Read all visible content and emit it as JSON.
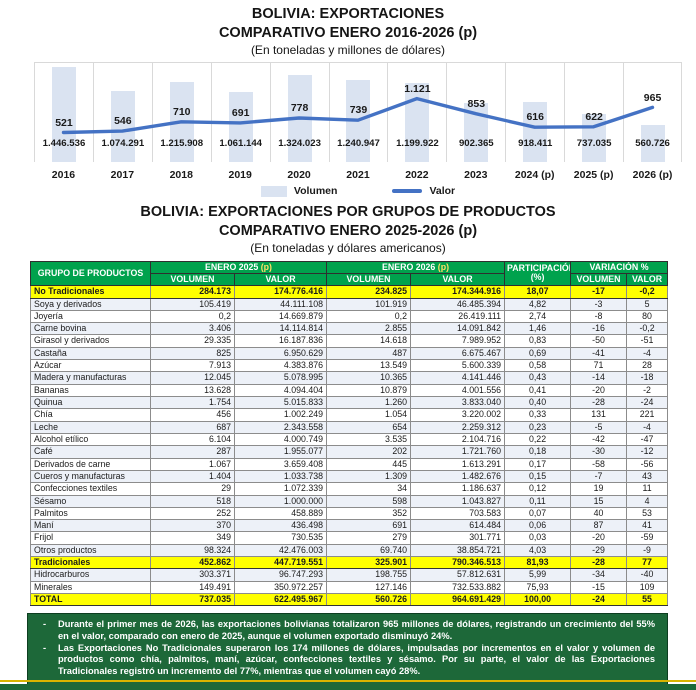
{
  "chart_section": {
    "title_line1": "BOLIVIA: EXPORTACIONES",
    "title_line2": "COMPARATIVO ENERO 2016-2026 (p)",
    "subtitle": "(En toneladas y millones de dólares)",
    "legend": {
      "volumen": "Volumen",
      "valor": "Valor"
    }
  },
  "chart_data": {
    "type": "bar+line",
    "categories": [
      "2016",
      "2017",
      "2018",
      "2019",
      "2020",
      "2021",
      "2022",
      "2023",
      "2024 (p)",
      "2025 (p)",
      "2026 (p)"
    ],
    "series": [
      {
        "name": "Volumen",
        "type": "bar",
        "values": [
          1446536,
          1074291,
          1215908,
          1061144,
          1324023,
          1240947,
          1199922,
          902365,
          918411,
          737035,
          560726
        ],
        "labels": [
          "1.446.536",
          "1.074.291",
          "1.215.908",
          "1.061.144",
          "1.324.023",
          "1.240.947",
          "1.199.922",
          "902.365",
          "918.411",
          "737.035",
          "560.726"
        ]
      },
      {
        "name": "Valor",
        "type": "line",
        "values": [
          521,
          546,
          710,
          691,
          778,
          739,
          1121,
          853,
          616,
          622,
          965
        ],
        "labels": [
          "521",
          "546",
          "710",
          "691",
          "778",
          "739",
          "1.121",
          "853",
          "616",
          "622",
          "965"
        ]
      }
    ],
    "volumen_axis_max": 1500000,
    "valor_axis_max": 1750,
    "bar_color": "#dae3f1",
    "line_color": "#4472c4",
    "grid_color": "#d9d9d9",
    "legend_position": "bottom",
    "grid": "vertical-only"
  },
  "table_section": {
    "title_line1": "BOLIVIA: EXPORTACIONES POR GRUPOS DE PRODUCTOS",
    "title_line2": "COMPARATIVO ENERO 2025-2026 (p)",
    "subtitle": "(En toneladas y dólares americanos)",
    "header": {
      "col_product": "GRUPO DE PRODUCTOS",
      "enero2025": {
        "main": "ENERO 2025",
        "p": " (p)"
      },
      "enero2026": {
        "main": "ENERO 2026",
        "p": " (p)"
      },
      "participacion_line1": "PARTICIPACIÓN",
      "participacion_line2": "(%)",
      "variacion": "VARIACIÓN %",
      "sub": [
        "VOLUMEN",
        "VALOR",
        "VOLUMEN",
        "VALOR",
        "VOLUMEN",
        "VALOR"
      ]
    },
    "rows": [
      {
        "name": "No Tradicionales",
        "vol25": "284.173",
        "val25": "174.776.416",
        "vol26": "234.825",
        "val26": "174.344.916",
        "part": "18,07",
        "var_vol": "-17",
        "var_val": "-0,2",
        "hl": true
      },
      {
        "name": "Soya y derivados",
        "vol25": "105.419",
        "val25": "44.111.108",
        "vol26": "101.919",
        "val26": "46.485.394",
        "part": "4,82",
        "var_vol": "-3",
        "var_val": "5",
        "hl": false
      },
      {
        "name": "Joyería",
        "vol25": "0,2",
        "val25": "14.669.879",
        "vol26": "0,2",
        "val26": "26.419.111",
        "part": "2,74",
        "var_vol": "-8",
        "var_val": "80",
        "hl": false
      },
      {
        "name": "Carne bovina",
        "vol25": "3.406",
        "val25": "14.114.814",
        "vol26": "2.855",
        "val26": "14.091.842",
        "part": "1,46",
        "var_vol": "-16",
        "var_val": "-0,2",
        "hl": false
      },
      {
        "name": "Girasol y derivados",
        "vol25": "29.335",
        "val25": "16.187.836",
        "vol26": "14.618",
        "val26": "7.989.952",
        "part": "0,83",
        "var_vol": "-50",
        "var_val": "-51",
        "hl": false
      },
      {
        "name": "Castaña",
        "vol25": "825",
        "val25": "6.950.629",
        "vol26": "487",
        "val26": "6.675.467",
        "part": "0,69",
        "var_vol": "-41",
        "var_val": "-4",
        "hl": false
      },
      {
        "name": "Azúcar",
        "vol25": "7.913",
        "val25": "4.383.876",
        "vol26": "13.549",
        "val26": "5.600.339",
        "part": "0,58",
        "var_vol": "71",
        "var_val": "28",
        "hl": false
      },
      {
        "name": "Madera y manufacturas",
        "vol25": "12.045",
        "val25": "5.078.995",
        "vol26": "10.365",
        "val26": "4.141.446",
        "part": "0,43",
        "var_vol": "-14",
        "var_val": "-18",
        "hl": false
      },
      {
        "name": "Bananas",
        "vol25": "13.628",
        "val25": "4.094.404",
        "vol26": "10.879",
        "val26": "4.001.556",
        "part": "0,41",
        "var_vol": "-20",
        "var_val": "-2",
        "hl": false
      },
      {
        "name": "Quinua",
        "vol25": "1.754",
        "val25": "5.015.833",
        "vol26": "1.260",
        "val26": "3.833.040",
        "part": "0,40",
        "var_vol": "-28",
        "var_val": "-24",
        "hl": false
      },
      {
        "name": "Chía",
        "vol25": "456",
        "val25": "1.002.249",
        "vol26": "1.054",
        "val26": "3.220.002",
        "part": "0,33",
        "var_vol": "131",
        "var_val": "221",
        "hl": false
      },
      {
        "name": "Leche",
        "vol25": "687",
        "val25": "2.343.558",
        "vol26": "654",
        "val26": "2.259.312",
        "part": "0,23",
        "var_vol": "-5",
        "var_val": "-4",
        "hl": false
      },
      {
        "name": "Alcohol etílico",
        "vol25": "6.104",
        "val25": "4.000.749",
        "vol26": "3.535",
        "val26": "2.104.716",
        "part": "0,22",
        "var_vol": "-42",
        "var_val": "-47",
        "hl": false
      },
      {
        "name": "Café",
        "vol25": "287",
        "val25": "1.955.077",
        "vol26": "202",
        "val26": "1.721.760",
        "part": "0,18",
        "var_vol": "-30",
        "var_val": "-12",
        "hl": false
      },
      {
        "name": "Derivados de carne",
        "vol25": "1.067",
        "val25": "3.659.408",
        "vol26": "445",
        "val26": "1.613.291",
        "part": "0,17",
        "var_vol": "-58",
        "var_val": "-56",
        "hl": false
      },
      {
        "name": "Cueros y manufacturas",
        "vol25": "1.404",
        "val25": "1.033.738",
        "vol26": "1.309",
        "val26": "1.482.676",
        "part": "0,15",
        "var_vol": "-7",
        "var_val": "43",
        "hl": false
      },
      {
        "name": "Confecciones textiles",
        "vol25": "29",
        "val25": "1.072.339",
        "vol26": "34",
        "val26": "1.186.637",
        "part": "0,12",
        "var_vol": "19",
        "var_val": "11",
        "hl": false
      },
      {
        "name": "Sésamo",
        "vol25": "518",
        "val25": "1.000.000",
        "vol26": "598",
        "val26": "1.043.827",
        "part": "0,11",
        "var_vol": "15",
        "var_val": "4",
        "hl": false
      },
      {
        "name": "Palmitos",
        "vol25": "252",
        "val25": "458.889",
        "vol26": "352",
        "val26": "703.583",
        "part": "0,07",
        "var_vol": "40",
        "var_val": "53",
        "hl": false
      },
      {
        "name": "Maní",
        "vol25": "370",
        "val25": "436.498",
        "vol26": "691",
        "val26": "614.484",
        "part": "0,06",
        "var_vol": "87",
        "var_val": "41",
        "hl": false
      },
      {
        "name": "Frijol",
        "vol25": "349",
        "val25": "730.535",
        "vol26": "279",
        "val26": "301.771",
        "part": "0,03",
        "var_vol": "-20",
        "var_val": "-59",
        "hl": false
      },
      {
        "name": "Otros productos",
        "vol25": "98.324",
        "val25": "42.476.003",
        "vol26": "69.740",
        "val26": "38.854.721",
        "part": "4,03",
        "var_vol": "-29",
        "var_val": "-9",
        "hl": false
      },
      {
        "name": "Tradicionales",
        "vol25": "452.862",
        "val25": "447.719.551",
        "vol26": "325.901",
        "val26": "790.346.513",
        "part": "81,93",
        "var_vol": "-28",
        "var_val": "77",
        "hl": true
      },
      {
        "name": "Hidrocarburos",
        "vol25": "303.371",
        "val25": "96.747.293",
        "vol26": "198.755",
        "val26": "57.812.631",
        "part": "5,99",
        "var_vol": "-34",
        "var_val": "-40",
        "hl": false
      },
      {
        "name": "Minerales",
        "vol25": "149.491",
        "val25": "350.972.257",
        "vol26": "127.146",
        "val26": "732.533.882",
        "part": "75,93",
        "var_vol": "-15",
        "var_val": "109",
        "hl": false
      },
      {
        "name": "TOTAL",
        "vol25": "737.035",
        "val25": "622.495.967",
        "vol26": "560.726",
        "val26": "964.691.429",
        "part": "100,00",
        "var_vol": "-24",
        "var_val": "55",
        "hl": true
      }
    ]
  },
  "summary_box": {
    "bullets": [
      "Durante el primer mes de 2026, las exportaciones bolivianas totalizaron 965 millones de dólares, registrando un crecimiento del 55% en el valor, comparado con enero de 2025, aunque el volumen exportado disminuyó 24%.",
      "Las Exportaciones No Tradicionales superaron los 174 millones de dólares, impulsadas por incrementos en el valor y volumen de productos como chía, palmitos, maní, azúcar, confecciones textiles y sésamo. Por su parte, el valor de las Exportaciones Tradicionales  registró un incremento del 77%, mientras que el volumen cayó 28%."
    ]
  },
  "footer_note": {
    "segments": [
      {
        "text": "Nota:",
        "bold": true
      },
      {
        "text": " No incluye reexportaciones ni efectos personales / ",
        "bold": false
      },
      {
        "text": "Fuente:",
        "bold": true
      },
      {
        "text": " INE / ",
        "bold": false
      },
      {
        "text": "Elaboración:",
        "bold": true
      },
      {
        "text": " IBCE / ",
        "bold": false
      },
      {
        "text": "(p):",
        "bold": true
      },
      {
        "text": " Datos preliminares",
        "bold": false
      }
    ]
  },
  "colors": {
    "table_header_green": "#00a24d",
    "highlight_yellow": "#ffff00",
    "negative_red": "#e80000",
    "summary_box_green": "#1d6839",
    "bar_light_blue": "#dae3f1",
    "line_blue": "#4472c4",
    "bottom_strip_yellow": "#d9b300",
    "bottom_strip_green": "#1d6839"
  }
}
